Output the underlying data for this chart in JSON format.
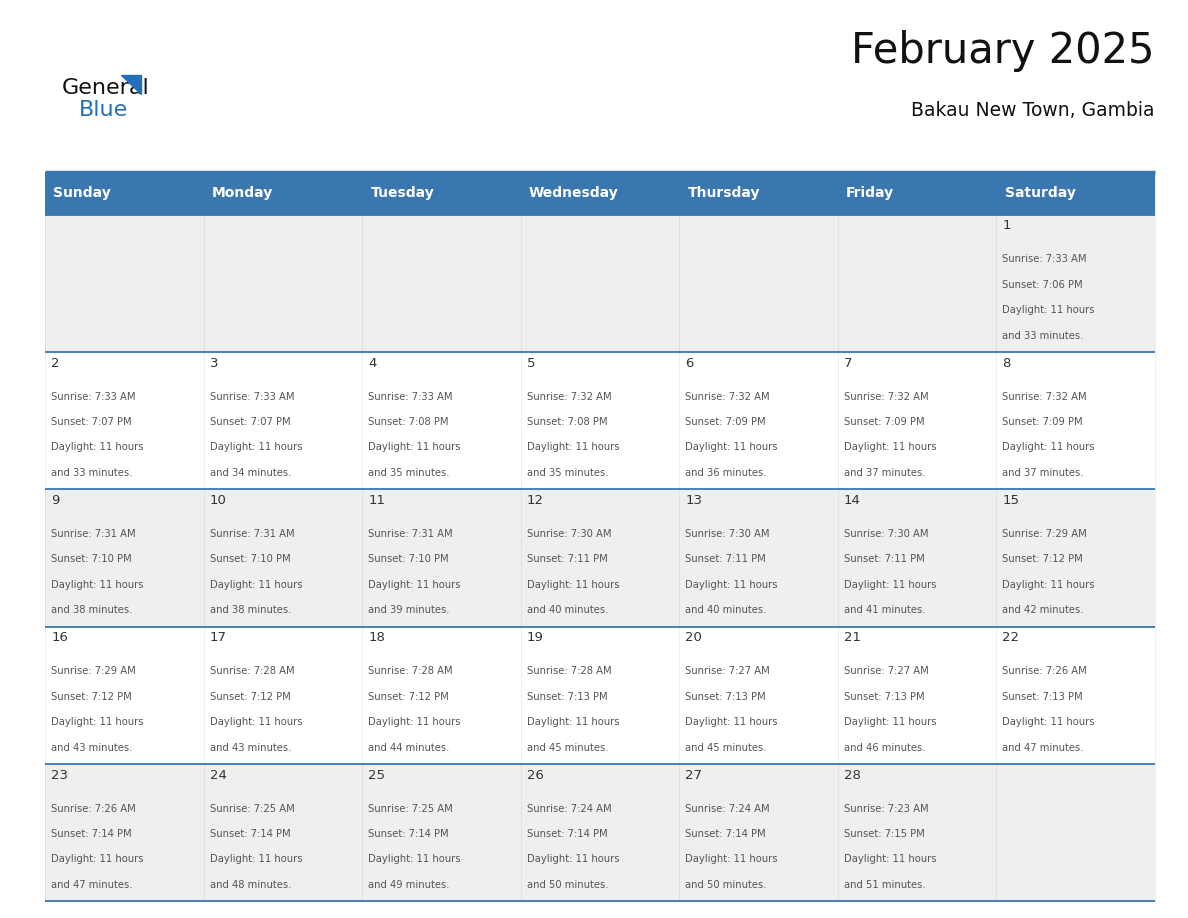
{
  "title": "February 2025",
  "subtitle": "Bakau New Town, Gambia",
  "header_bg_color": "#3a77b0",
  "header_text_color": "#ffffff",
  "day_names": [
    "Sunday",
    "Monday",
    "Tuesday",
    "Wednesday",
    "Thursday",
    "Friday",
    "Saturday"
  ],
  "row_bg_even": "#efefef",
  "row_bg_odd": "#ffffff",
  "cell_border_color": "#3a77b0",
  "logo_general_color": "#111111",
  "logo_blue_color": "#2271b8",
  "logo_triangle_color": "#2271b8",
  "title_color": "#111111",
  "subtitle_color": "#111111",
  "day_number_color": "#333333",
  "cell_text_color": "#555555",
  "calendar_data": [
    [
      null,
      null,
      null,
      null,
      null,
      null,
      {
        "day": 1,
        "sunrise": "7:33 AM",
        "sunset": "7:06 PM",
        "daylight": "11 hours",
        "daylight2": "and 33 minutes."
      }
    ],
    [
      {
        "day": 2,
        "sunrise": "7:33 AM",
        "sunset": "7:07 PM",
        "daylight": "11 hours",
        "daylight2": "and 33 minutes."
      },
      {
        "day": 3,
        "sunrise": "7:33 AM",
        "sunset": "7:07 PM",
        "daylight": "11 hours",
        "daylight2": "and 34 minutes."
      },
      {
        "day": 4,
        "sunrise": "7:33 AM",
        "sunset": "7:08 PM",
        "daylight": "11 hours",
        "daylight2": "and 35 minutes."
      },
      {
        "day": 5,
        "sunrise": "7:32 AM",
        "sunset": "7:08 PM",
        "daylight": "11 hours",
        "daylight2": "and 35 minutes."
      },
      {
        "day": 6,
        "sunrise": "7:32 AM",
        "sunset": "7:09 PM",
        "daylight": "11 hours",
        "daylight2": "and 36 minutes."
      },
      {
        "day": 7,
        "sunrise": "7:32 AM",
        "sunset": "7:09 PM",
        "daylight": "11 hours",
        "daylight2": "and 37 minutes."
      },
      {
        "day": 8,
        "sunrise": "7:32 AM",
        "sunset": "7:09 PM",
        "daylight": "11 hours",
        "daylight2": "and 37 minutes."
      }
    ],
    [
      {
        "day": 9,
        "sunrise": "7:31 AM",
        "sunset": "7:10 PM",
        "daylight": "11 hours",
        "daylight2": "and 38 minutes."
      },
      {
        "day": 10,
        "sunrise": "7:31 AM",
        "sunset": "7:10 PM",
        "daylight": "11 hours",
        "daylight2": "and 38 minutes."
      },
      {
        "day": 11,
        "sunrise": "7:31 AM",
        "sunset": "7:10 PM",
        "daylight": "11 hours",
        "daylight2": "and 39 minutes."
      },
      {
        "day": 12,
        "sunrise": "7:30 AM",
        "sunset": "7:11 PM",
        "daylight": "11 hours",
        "daylight2": "and 40 minutes."
      },
      {
        "day": 13,
        "sunrise": "7:30 AM",
        "sunset": "7:11 PM",
        "daylight": "11 hours",
        "daylight2": "and 40 minutes."
      },
      {
        "day": 14,
        "sunrise": "7:30 AM",
        "sunset": "7:11 PM",
        "daylight": "11 hours",
        "daylight2": "and 41 minutes."
      },
      {
        "day": 15,
        "sunrise": "7:29 AM",
        "sunset": "7:12 PM",
        "daylight": "11 hours",
        "daylight2": "and 42 minutes."
      }
    ],
    [
      {
        "day": 16,
        "sunrise": "7:29 AM",
        "sunset": "7:12 PM",
        "daylight": "11 hours",
        "daylight2": "and 43 minutes."
      },
      {
        "day": 17,
        "sunrise": "7:28 AM",
        "sunset": "7:12 PM",
        "daylight": "11 hours",
        "daylight2": "and 43 minutes."
      },
      {
        "day": 18,
        "sunrise": "7:28 AM",
        "sunset": "7:12 PM",
        "daylight": "11 hours",
        "daylight2": "and 44 minutes."
      },
      {
        "day": 19,
        "sunrise": "7:28 AM",
        "sunset": "7:13 PM",
        "daylight": "11 hours",
        "daylight2": "and 45 minutes."
      },
      {
        "day": 20,
        "sunrise": "7:27 AM",
        "sunset": "7:13 PM",
        "daylight": "11 hours",
        "daylight2": "and 45 minutes."
      },
      {
        "day": 21,
        "sunrise": "7:27 AM",
        "sunset": "7:13 PM",
        "daylight": "11 hours",
        "daylight2": "and 46 minutes."
      },
      {
        "day": 22,
        "sunrise": "7:26 AM",
        "sunset": "7:13 PM",
        "daylight": "11 hours",
        "daylight2": "and 47 minutes."
      }
    ],
    [
      {
        "day": 23,
        "sunrise": "7:26 AM",
        "sunset": "7:14 PM",
        "daylight": "11 hours",
        "daylight2": "and 47 minutes."
      },
      {
        "day": 24,
        "sunrise": "7:25 AM",
        "sunset": "7:14 PM",
        "daylight": "11 hours",
        "daylight2": "and 48 minutes."
      },
      {
        "day": 25,
        "sunrise": "7:25 AM",
        "sunset": "7:14 PM",
        "daylight": "11 hours",
        "daylight2": "and 49 minutes."
      },
      {
        "day": 26,
        "sunrise": "7:24 AM",
        "sunset": "7:14 PM",
        "daylight": "11 hours",
        "daylight2": "and 50 minutes."
      },
      {
        "day": 27,
        "sunrise": "7:24 AM",
        "sunset": "7:14 PM",
        "daylight": "11 hours",
        "daylight2": "and 50 minutes."
      },
      {
        "day": 28,
        "sunrise": "7:23 AM",
        "sunset": "7:15 PM",
        "daylight": "11 hours",
        "daylight2": "and 51 minutes."
      },
      null
    ]
  ]
}
